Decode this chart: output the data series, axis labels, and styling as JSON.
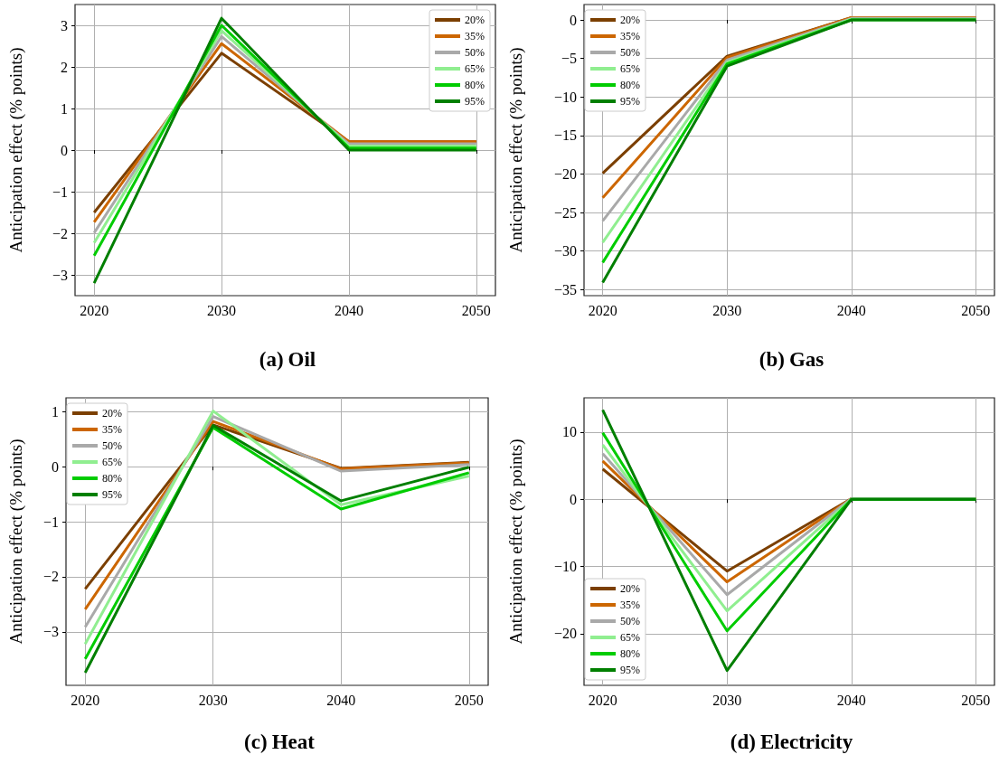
{
  "chart_data": [
    {
      "type": "line",
      "title": "(a) Oil",
      "ylabel": "Anticipation effect (% points)",
      "x": [
        2020,
        2030,
        2040,
        2050
      ],
      "xlim": [
        2018.5,
        2051.5
      ],
      "xticks": [
        2020,
        2030,
        2040,
        2050
      ],
      "ylim": [
        -3.5,
        3.5
      ],
      "yticks": [
        -3,
        -2,
        -1,
        0,
        1,
        2,
        3
      ],
      "grid": true,
      "legend": "top right",
      "line_style": "solid",
      "series": [
        {
          "name": "20%",
          "color": "#7b3f00",
          "values": [
            -1.5,
            2.33,
            0.2,
            0.2
          ]
        },
        {
          "name": "35%",
          "color": "#cc6600",
          "values": [
            -1.73,
            2.56,
            0.2,
            0.2
          ]
        },
        {
          "name": "50%",
          "color": "#a9a9a9",
          "values": [
            -1.99,
            2.73,
            0.15,
            0.15
          ]
        },
        {
          "name": "65%",
          "color": "#90ee90",
          "values": [
            -2.23,
            2.87,
            0.1,
            0.1
          ]
        },
        {
          "name": "80%",
          "color": "#00cc00",
          "values": [
            -2.54,
            3.0,
            0.05,
            0.05
          ]
        },
        {
          "name": "95%",
          "color": "#007f00",
          "values": [
            -3.2,
            3.17,
            0,
            0
          ]
        }
      ]
    },
    {
      "type": "line",
      "title": "(b) Gas",
      "ylabel": "Anticipation effect (% points)",
      "x": [
        2020,
        2030,
        2040,
        2050
      ],
      "xlim": [
        2018.5,
        2051.5
      ],
      "xticks": [
        2020,
        2030,
        2040,
        2050
      ],
      "ylim": [
        -35.8,
        2
      ],
      "yticks": [
        -35,
        -30,
        -25,
        -20,
        -15,
        -10,
        -5,
        0
      ],
      "grid": true,
      "legend": "top left",
      "line_style": "solid",
      "series": [
        {
          "name": "20%",
          "color": "#7b3f00",
          "values": [
            -19.9,
            -4.7,
            0.3,
            0.3
          ]
        },
        {
          "name": "35%",
          "color": "#cc6600",
          "values": [
            -23.1,
            -4.9,
            0.3,
            0.3
          ]
        },
        {
          "name": "50%",
          "color": "#a9a9a9",
          "values": [
            -26.1,
            -5.2,
            0.2,
            0.2
          ]
        },
        {
          "name": "65%",
          "color": "#90ee90",
          "values": [
            -28.9,
            -5.5,
            0.1,
            0.1
          ]
        },
        {
          "name": "80%",
          "color": "#00cc00",
          "values": [
            -31.5,
            -5.7,
            0,
            0
          ]
        },
        {
          "name": "95%",
          "color": "#007f00",
          "values": [
            -34.1,
            -6.0,
            0,
            0
          ]
        }
      ]
    },
    {
      "type": "line",
      "title": "(c) Heat",
      "ylabel": "Anticipation effect (% points)",
      "x": [
        2020,
        2030,
        2040,
        2050
      ],
      "xlim": [
        2018.5,
        2051.5
      ],
      "xticks": [
        2020,
        2030,
        2040,
        2050
      ],
      "ylim": [
        -3.97,
        1.25
      ],
      "yticks": [
        -3,
        -2,
        -1,
        0,
        1
      ],
      "grid": true,
      "legend": "top left",
      "line_style": "solid",
      "series": [
        {
          "name": "20%",
          "color": "#7b3f00",
          "values": [
            -2.22,
            0.76,
            -0.03,
            0.08
          ]
        },
        {
          "name": "35%",
          "color": "#cc6600",
          "values": [
            -2.59,
            0.82,
            -0.04,
            0.07
          ]
        },
        {
          "name": "50%",
          "color": "#a9a9a9",
          "values": [
            -2.91,
            0.91,
            -0.08,
            0.04
          ]
        },
        {
          "name": "65%",
          "color": "#90ee90",
          "values": [
            -3.22,
            1.01,
            -0.69,
            -0.17
          ]
        },
        {
          "name": "80%",
          "color": "#00cc00",
          "values": [
            -3.49,
            0.71,
            -0.77,
            -0.11
          ]
        },
        {
          "name": "95%",
          "color": "#007f00",
          "values": [
            -3.74,
            0.75,
            -0.62,
            -0.01
          ]
        }
      ]
    },
    {
      "type": "line",
      "title": "(d) Electricity",
      "ylabel": "Anticipation effect (% points)",
      "x": [
        2020,
        2030,
        2040,
        2050
      ],
      "xlim": [
        2018.5,
        2051.5
      ],
      "xticks": [
        2020,
        2030,
        2040,
        2050
      ],
      "ylim": [
        -27.7,
        15.1
      ],
      "yticks": [
        -20,
        -10,
        0,
        10
      ],
      "grid": true,
      "legend": "bottom left",
      "line_style": "solid",
      "series": [
        {
          "name": "20%",
          "color": "#7b3f00",
          "values": [
            4.5,
            -10.7,
            0.1,
            0.1
          ]
        },
        {
          "name": "35%",
          "color": "#cc6600",
          "values": [
            5.7,
            -12.3,
            0.1,
            0.1
          ]
        },
        {
          "name": "50%",
          "color": "#a9a9a9",
          "values": [
            6.8,
            -14.2,
            0.1,
            0.1
          ]
        },
        {
          "name": "65%",
          "color": "#90ee90",
          "values": [
            8.1,
            -16.6,
            0,
            0
          ]
        },
        {
          "name": "80%",
          "color": "#00cc00",
          "values": [
            9.9,
            -19.6,
            0,
            0
          ]
        },
        {
          "name": "95%",
          "color": "#007f00",
          "values": [
            13.3,
            -25.5,
            0,
            0
          ]
        }
      ]
    }
  ]
}
